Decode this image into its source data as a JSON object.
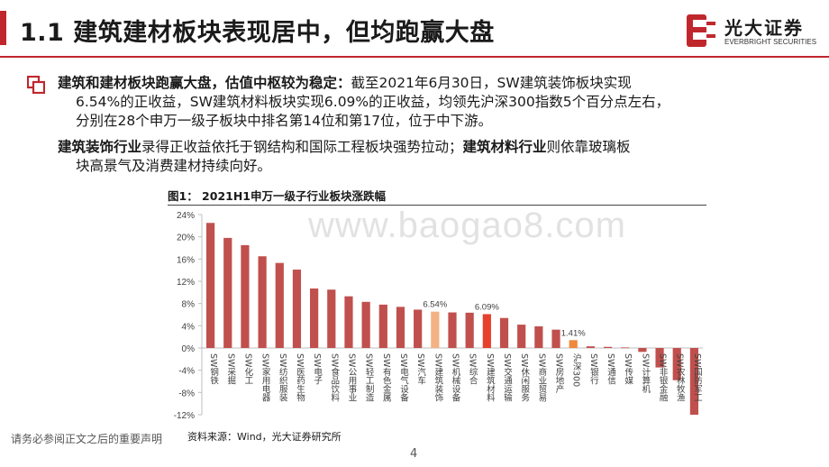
{
  "header": {
    "title": "1.1  建筑建材板块表现居中，但均跑赢大盘",
    "logo_cn": "光大证券",
    "logo_en": "EVERBRIGHT SECURITIES"
  },
  "body": {
    "p1_bold": "建筑和建材板块跑赢大盘，估值中枢较为稳定：",
    "p1_line1_rest": "截至2021年6月30日，SW建筑装饰板块实现",
    "p1_line2": "6.54%的正收益，SW建筑材料板块实现6.09%的正收益，均领先沪深300指数5个百分点左右，",
    "p1_line3": "分别在28个申万一级子板块中排名第14位和第17位，位于中下游。",
    "p2_bold1": "建筑装饰行业",
    "p2_mid": "录得正收益依托于钢结构和国际工程板块强势拉动；",
    "p2_bold2": "建筑材料行业",
    "p2_rest1": "则依靠玻璃板",
    "p2_line2": "块高景气及消费建材持续向好。"
  },
  "figure": {
    "caption": "图1：  2021H1申万一级子行业板块涨跌幅",
    "source": "资料来源：Wind，光大证券研究所"
  },
  "footer": {
    "disclaimer": "请务必参阅正文之后的重要声明",
    "page": "4"
  },
  "watermark": "www.baogao8.com",
  "colors": {
    "brand_red": "#c0272d",
    "bar_default": "#c0504d",
    "bar_highlight_decor": "#f4b183",
    "bar_highlight_material": "#e8402e",
    "bar_index": "#f0883e"
  },
  "chart_data": {
    "type": "bar",
    "ylim": [
      -12,
      24
    ],
    "yticks": [
      -12,
      -8,
      -4,
      0,
      4,
      8,
      12,
      16,
      20,
      24
    ],
    "ytick_suffix": "%",
    "categories": [
      "SW钢铁",
      "SW采掘",
      "SW化工",
      "SW家用电器",
      "SW纺织服装",
      "SW医药生物",
      "SW电子",
      "SW食品饮料",
      "SW公用事业",
      "SW轻工制造",
      "SW有色金属",
      "SW电气设备",
      "SW汽车",
      "SW建筑装饰",
      "SW机械设备",
      "SW综合",
      "SW建筑材料",
      "SW交通运输",
      "SW休闲服务",
      "SW商业贸易",
      "SW房地产",
      "沪深300",
      "SW银行",
      "SW通信",
      "SW传媒",
      "SW计算机",
      "SW非银金融",
      "SW农林牧渔",
      "SW国防军工"
    ],
    "values": [
      22.5,
      19.8,
      18.5,
      16.5,
      15.3,
      14.1,
      10.7,
      10.5,
      9.3,
      8.3,
      7.8,
      7.4,
      6.9,
      6.54,
      6.4,
      6.35,
      6.09,
      5.4,
      4.2,
      3.9,
      3.3,
      1.41,
      0.3,
      0.2,
      0.1,
      -0.7,
      -3.5,
      -5.8,
      -12.0
    ],
    "highlights": {
      "SW建筑装饰": "decor",
      "SW建筑材料": "material",
      "沪深300": "index"
    },
    "data_labels": {
      "SW建筑装饰": "6.54%",
      "SW建筑材料": "6.09%",
      "沪深300": "1.41%"
    }
  }
}
